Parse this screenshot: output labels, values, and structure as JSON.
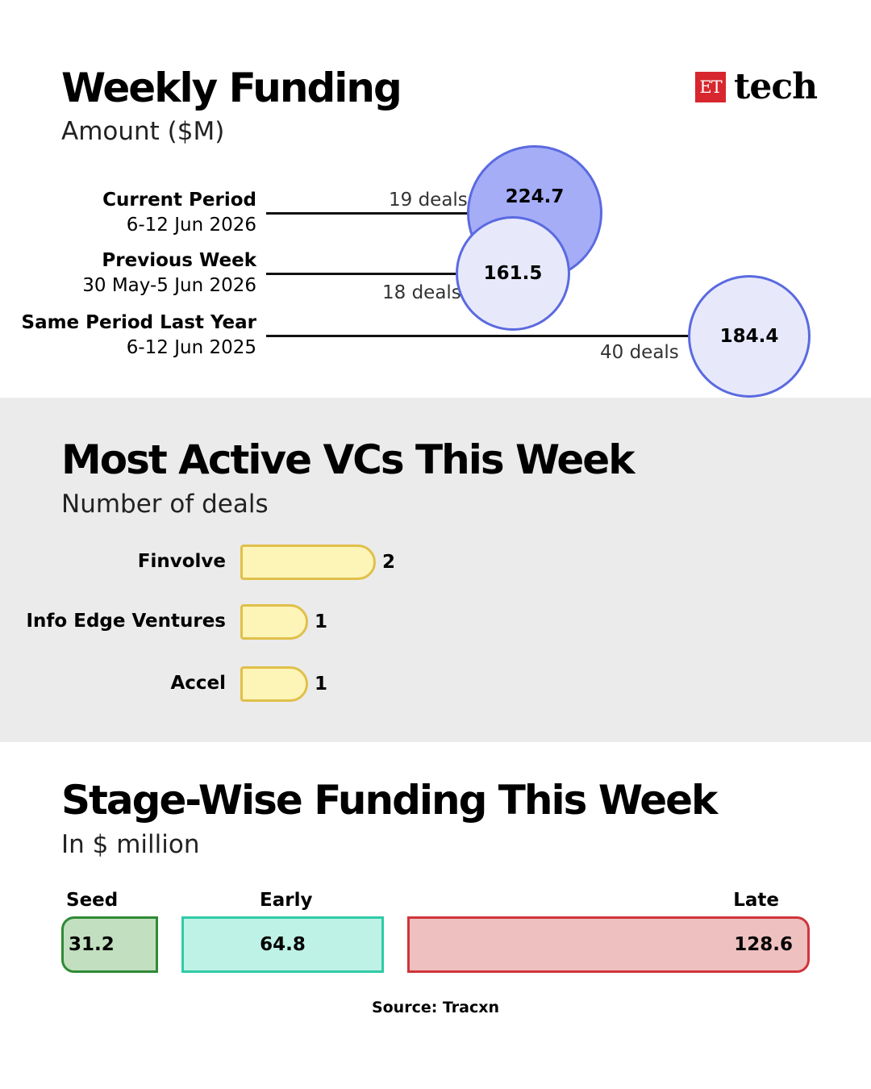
{
  "logo": {
    "mark": "ET",
    "text": "tech"
  },
  "weekly": {
    "title": "Weekly Funding",
    "subtitle": "Amount ($M)",
    "rows": [
      {
        "name": "Current Period",
        "date": "6-12 Jun 2026",
        "deals": "19 deals",
        "amount": "224.7"
      },
      {
        "name": "Previous Week",
        "date": "30 May-5 Jun 2026",
        "deals": "18 deals",
        "amount": "161.5"
      },
      {
        "name": "Same Period Last Year",
        "date": "6-12 Jun 2025",
        "deals": "40 deals",
        "amount": "184.4"
      }
    ]
  },
  "vcs": {
    "title": "Most Active VCs This Week",
    "subtitle": "Number of deals",
    "items": [
      {
        "name": "Finvolve",
        "value": "2"
      },
      {
        "name": "Info Edge Ventures",
        "value": "1"
      },
      {
        "name": "Accel",
        "value": "1"
      }
    ]
  },
  "stage": {
    "title": "Stage-Wise Funding This Week",
    "subtitle": "In $ million",
    "items": [
      {
        "name": "Seed",
        "value": "31.2"
      },
      {
        "name": "Early",
        "value": "64.8"
      },
      {
        "name": "Late",
        "value": "128.6"
      }
    ]
  },
  "source": "Source: Tracxn",
  "colors": {
    "bubble_current": "#a5adf7",
    "bubble_other": "#e7e9fb",
    "bubble_border": "#5a6ae0",
    "vc_fill": "#fdf4b8",
    "vc_border": "#e0c04a",
    "seed_fill": "#c2dfbf",
    "seed_border": "#2f8a35",
    "early_fill": "#bff2e6",
    "early_border": "#2fcba8",
    "late_fill": "#efc0c0",
    "late_border": "#d0353a",
    "band": "#ebebeb"
  },
  "chart_data": [
    {
      "type": "bubble",
      "title": "Weekly Funding",
      "subtitle": "Amount ($M)",
      "categories": [
        "Current Period",
        "Previous Week",
        "Same Period Last Year"
      ],
      "values": [
        224.7,
        161.5,
        184.4
      ],
      "deals": [
        19,
        18,
        40
      ]
    },
    {
      "type": "bar",
      "title": "Most Active VCs This Week",
      "subtitle": "Number of deals",
      "categories": [
        "Finvolve",
        "Info Edge Ventures",
        "Accel"
      ],
      "values": [
        2,
        1,
        1
      ]
    },
    {
      "type": "bar",
      "title": "Stage-Wise Funding This Week",
      "subtitle": "In $ million",
      "categories": [
        "Seed",
        "Early",
        "Late"
      ],
      "values": [
        31.2,
        64.8,
        128.6
      ]
    }
  ]
}
